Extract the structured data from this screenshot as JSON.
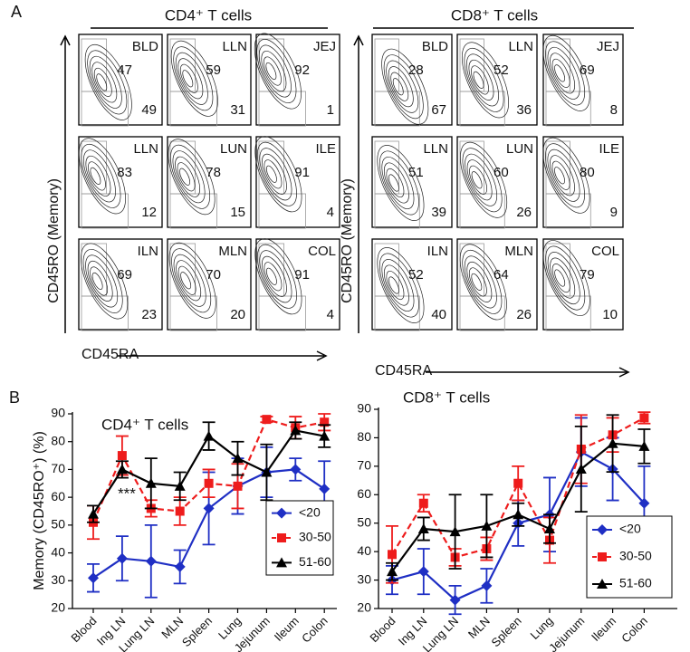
{
  "panel_a": {
    "label": "A",
    "groups": [
      {
        "title": "CD4⁺ T cells",
        "y_label": "CD45RO (Memory)",
        "x_label": "CD45RA",
        "plots": [
          {
            "tissue": "BLD",
            "memory": 47,
            "naive": 49
          },
          {
            "tissue": "LLN",
            "memory": 59,
            "naive": 31
          },
          {
            "tissue": "JEJ",
            "memory": 92,
            "naive": 1
          },
          {
            "tissue": "LLN",
            "memory": 83,
            "naive": 12
          },
          {
            "tissue": "LUN",
            "memory": 78,
            "naive": 15
          },
          {
            "tissue": "ILE",
            "memory": 91,
            "naive": 4
          },
          {
            "tissue": "ILN",
            "memory": 69,
            "naive": 23
          },
          {
            "tissue": "MLN",
            "memory": 70,
            "naive": 20
          },
          {
            "tissue": "COL",
            "memory": 91,
            "naive": 4
          }
        ]
      },
      {
        "title": "CD8⁺ T cells",
        "y_label": "CD45RO (Memory)",
        "x_label": "CD45RA",
        "plots": [
          {
            "tissue": "BLD",
            "memory": 28,
            "naive": 67
          },
          {
            "tissue": "LLN",
            "memory": 52,
            "naive": 36
          },
          {
            "tissue": "JEJ",
            "memory": 69,
            "naive": 8
          },
          {
            "tissue": "LLN",
            "memory": 51,
            "naive": 39
          },
          {
            "tissue": "LUN",
            "memory": 60,
            "naive": 26
          },
          {
            "tissue": "ILE",
            "memory": 80,
            "naive": 9
          },
          {
            "tissue": "ILN",
            "memory": 52,
            "naive": 40
          },
          {
            "tissue": "MLN",
            "memory": 64,
            "naive": 26
          },
          {
            "tissue": "COL",
            "memory": 79,
            "naive": 10
          }
        ]
      }
    ]
  },
  "panel_b_label": "B",
  "chart_data": [
    {
      "type": "line",
      "title": "CD4⁺ T cells",
      "y_label": "Memory (CD45RO⁺) (%)",
      "annotation": "***",
      "categories": [
        "Blood",
        "Ing LN",
        "Lung LN",
        "MLN",
        "Spleen",
        "Lung",
        "Jejunum",
        "Ileum",
        "Colon"
      ],
      "ylim": [
        20,
        90
      ],
      "yticks": [
        20,
        30,
        40,
        50,
        60,
        70,
        80,
        90
      ],
      "legend": "lower right",
      "series": [
        {
          "name": "<20",
          "color": "#1f2fc4",
          "marker": "diamond",
          "dash": false,
          "values": [
            31,
            38,
            37,
            35,
            56,
            64,
            69,
            70,
            63
          ],
          "errors": [
            5,
            8,
            13,
            6,
            13,
            10,
            9,
            4,
            10
          ]
        },
        {
          "name": "30-50",
          "color": "#ee1c1c",
          "marker": "square",
          "dash": true,
          "values": [
            51,
            75,
            56,
            55,
            65,
            64,
            88,
            85,
            87
          ],
          "errors": [
            6,
            7,
            3,
            5,
            5,
            8,
            1,
            4,
            3
          ]
        },
        {
          "name": "51-60",
          "color": "#000000",
          "marker": "triangle",
          "dash": false,
          "values": [
            54,
            70,
            65,
            64,
            82,
            74,
            69,
            84,
            82
          ],
          "errors": [
            3,
            3,
            9,
            5,
            5,
            6,
            10,
            3,
            4
          ]
        }
      ]
    },
    {
      "type": "line",
      "title": "CD8⁺ T cells",
      "categories": [
        "Blood",
        "Ing LN",
        "Lung LN",
        "MLN",
        "Spleen",
        "Lung",
        "Jejunum",
        "Ileum",
        "Colon"
      ],
      "ylim": [
        20,
        90
      ],
      "yticks": [
        20,
        30,
        40,
        50,
        60,
        70,
        80,
        90
      ],
      "legend": "lower right",
      "series": [
        {
          "name": "<20",
          "color": "#1f2fc4",
          "marker": "diamond",
          "dash": false,
          "values": [
            30,
            33,
            23,
            28,
            50,
            53,
            75,
            69,
            57
          ],
          "errors": [
            5,
            8,
            5,
            6,
            8,
            13,
            12,
            11,
            13
          ]
        },
        {
          "name": "30-50",
          "color": "#ee1c1c",
          "marker": "square",
          "dash": true,
          "values": [
            39,
            57,
            38,
            41,
            64,
            44,
            76,
            81,
            87
          ],
          "errors": [
            10,
            3,
            3,
            4,
            6,
            8,
            12,
            6,
            2
          ]
        },
        {
          "name": "51-60",
          "color": "#000000",
          "marker": "triangle",
          "dash": false,
          "values": [
            33,
            48,
            47,
            49,
            53,
            48,
            69,
            78,
            77
          ],
          "errors": [
            3,
            4,
            13,
            11,
            4,
            5,
            15,
            10,
            6
          ]
        }
      ]
    }
  ]
}
